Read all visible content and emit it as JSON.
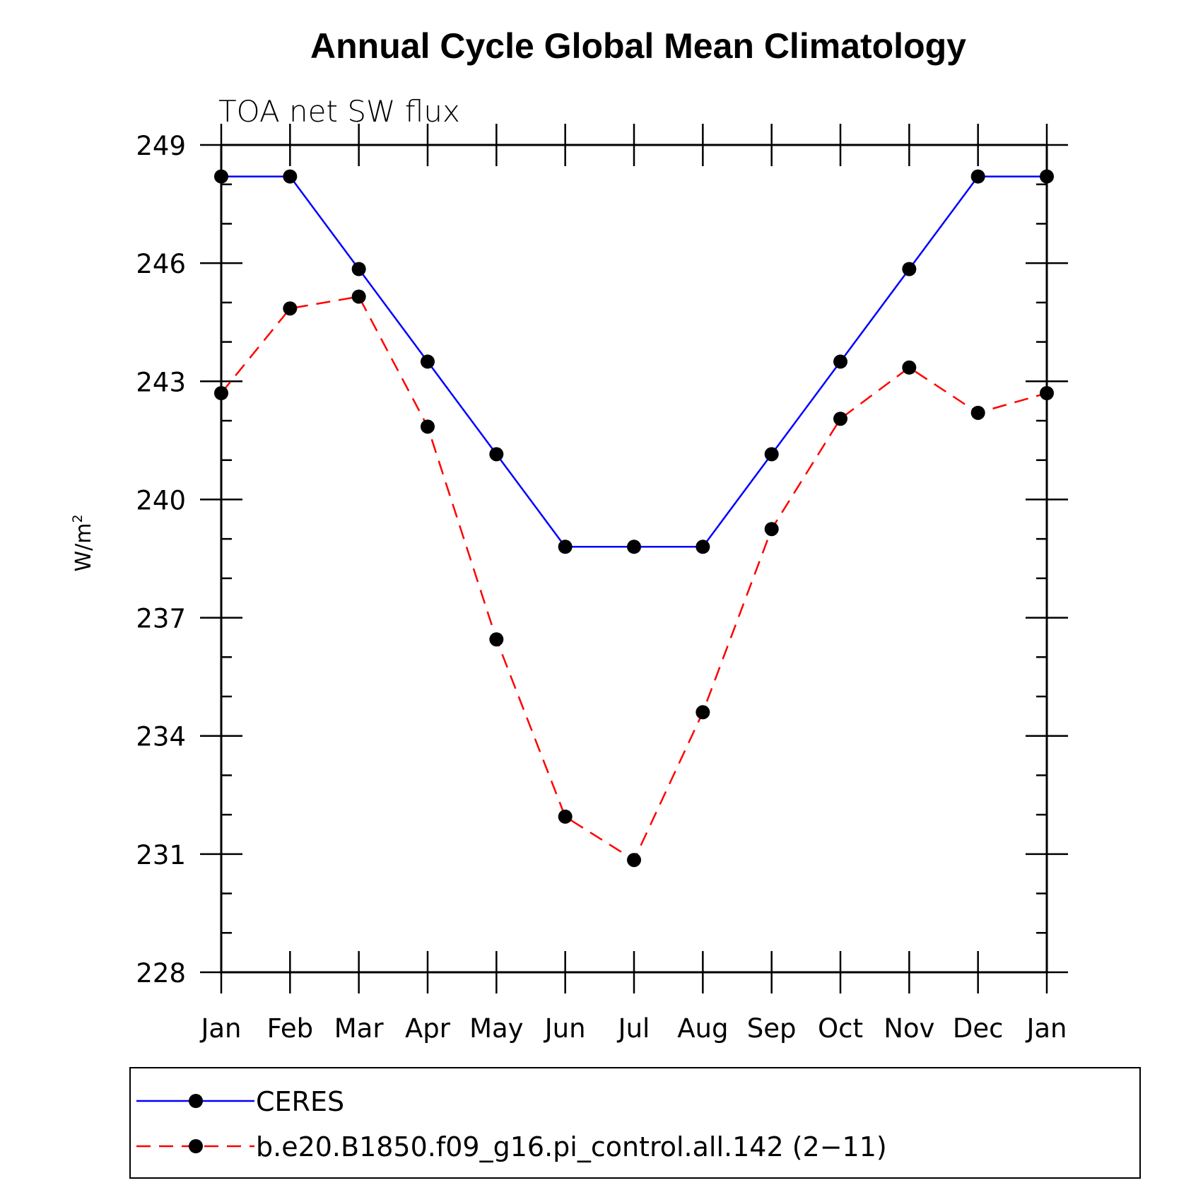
{
  "chart_data": {
    "type": "line",
    "title": "Annual Cycle Global Mean Climatology",
    "subtitle": "TOA net SW flux",
    "ylabel": "W/m",
    "ylabel_sup": "2",
    "ylim": [
      228,
      249
    ],
    "y_ticks": [
      "228",
      "231",
      "234",
      "237",
      "240",
      "243",
      "246",
      "249"
    ],
    "categories": [
      "Jan",
      "Feb",
      "Mar",
      "Apr",
      "May",
      "Jun",
      "Jul",
      "Aug",
      "Sep",
      "Oct",
      "Nov",
      "Dec",
      "Jan"
    ],
    "grid": false,
    "legend_position": "bottom",
    "series": [
      {
        "name": "CERES",
        "color": "#0000ff",
        "dash": "solid",
        "marker": "circle",
        "values": [
          248.2,
          248.2,
          245.85,
          243.5,
          241.15,
          238.8,
          238.8,
          238.8,
          241.15,
          243.5,
          245.85,
          248.2,
          248.2
        ]
      },
      {
        "name": "b.e20.B1850.f09_g16.pi_control.all.142 (2−11)",
        "color": "#ff0000",
        "dash": "dashed",
        "marker": "circle",
        "values": [
          242.7,
          244.85,
          245.15,
          241.85,
          236.45,
          231.95,
          230.85,
          234.6,
          239.25,
          242.05,
          243.35,
          242.2,
          242.7
        ]
      }
    ]
  }
}
